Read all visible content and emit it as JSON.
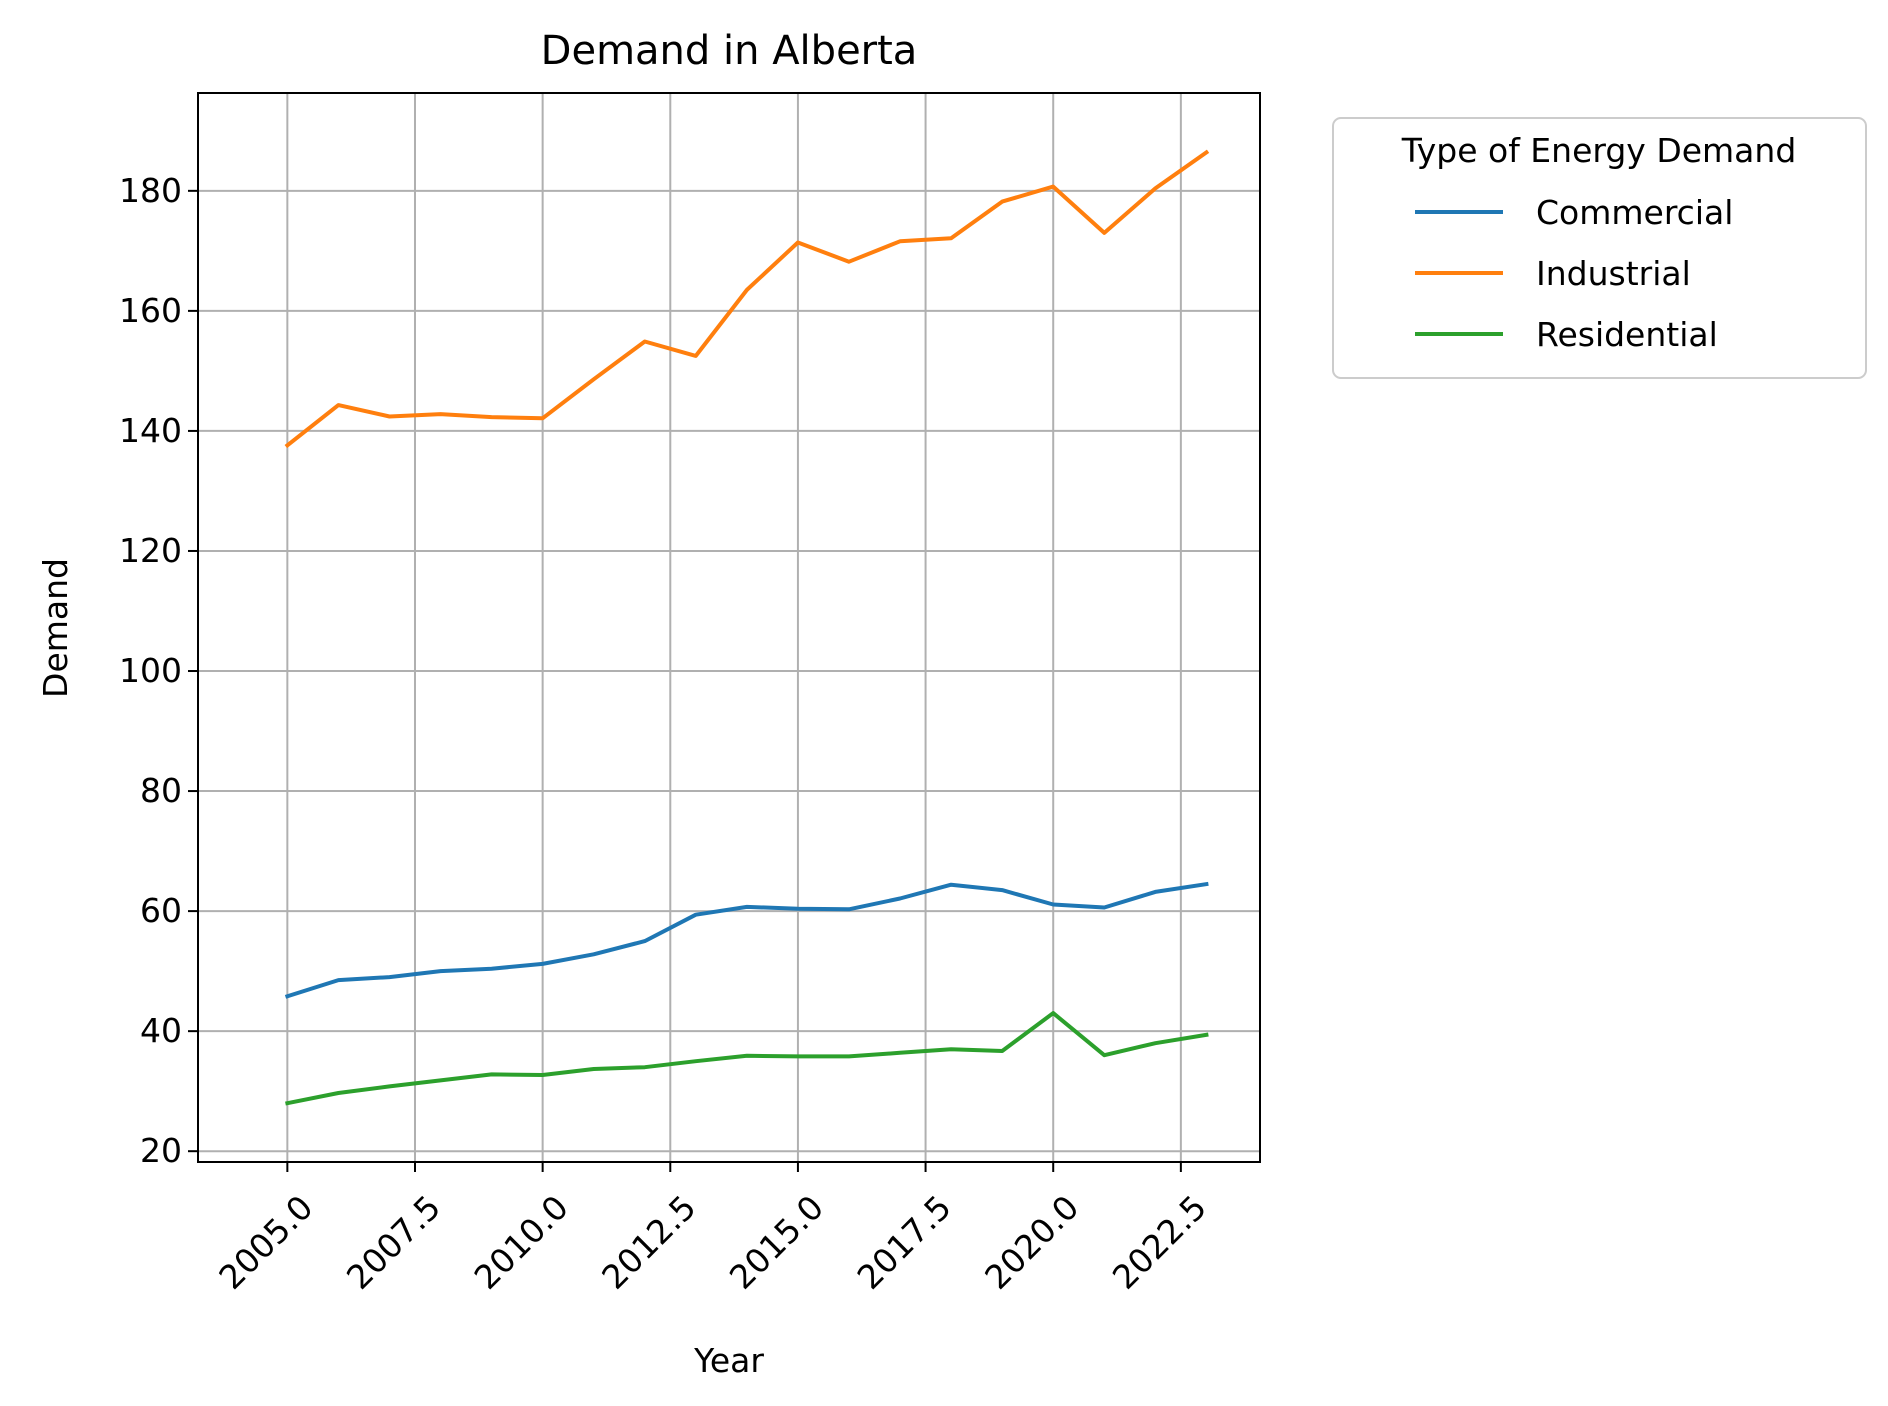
{
  "chart_data": {
    "type": "line",
    "title": "Demand in Alberta",
    "xlabel": "Year",
    "ylabel": "Demand",
    "xlim": [
      2003.25,
      2024.05
    ],
    "ylim": [
      18.2,
      196.3
    ],
    "xticks": [
      2005.0,
      2007.5,
      2010.0,
      2012.5,
      2015.0,
      2017.5,
      2020.0,
      2022.5
    ],
    "xtick_labels": [
      "2005.0",
      "2007.5",
      "2010.0",
      "2012.5",
      "2015.0",
      "2017.5",
      "2020.0",
      "2022.5"
    ],
    "yticks": [
      20,
      40,
      60,
      80,
      100,
      120,
      140,
      160,
      180
    ],
    "ytick_labels": [
      "20",
      "40",
      "60",
      "80",
      "100",
      "120",
      "140",
      "160",
      "180"
    ],
    "grid": true,
    "legend_title": "Type of Energy Demand",
    "legend_position": "outside upper right",
    "x": [
      2005,
      2006,
      2007,
      2008,
      2009,
      2010,
      2011,
      2012,
      2013,
      2014,
      2015,
      2016,
      2017,
      2018,
      2019,
      2020,
      2021,
      2022,
      2023
    ],
    "series": [
      {
        "name": "Commercial",
        "color": "#1f77b4",
        "values": [
          45.8,
          48.5,
          49.0,
          50.0,
          50.4,
          51.2,
          52.8,
          55.0,
          59.4,
          60.7,
          60.4,
          60.3,
          62.1,
          64.4,
          63.5,
          61.1,
          60.6,
          63.2,
          64.5
        ]
      },
      {
        "name": "Industrial",
        "color": "#ff7f0e",
        "values": [
          137.6,
          144.3,
          142.4,
          142.8,
          142.3,
          142.1,
          148.6,
          154.9,
          152.5,
          163.5,
          171.4,
          168.2,
          171.6,
          172.1,
          178.2,
          180.7,
          173.0,
          180.4,
          186.4
        ]
      },
      {
        "name": "Residential",
        "color": "#2ca02c",
        "values": [
          28.0,
          29.7,
          30.8,
          31.8,
          32.8,
          32.7,
          33.7,
          34.0,
          35.0,
          35.9,
          35.8,
          35.8,
          36.4,
          37.0,
          36.7,
          43.0,
          36.0,
          38.0,
          39.4
        ]
      }
    ]
  }
}
